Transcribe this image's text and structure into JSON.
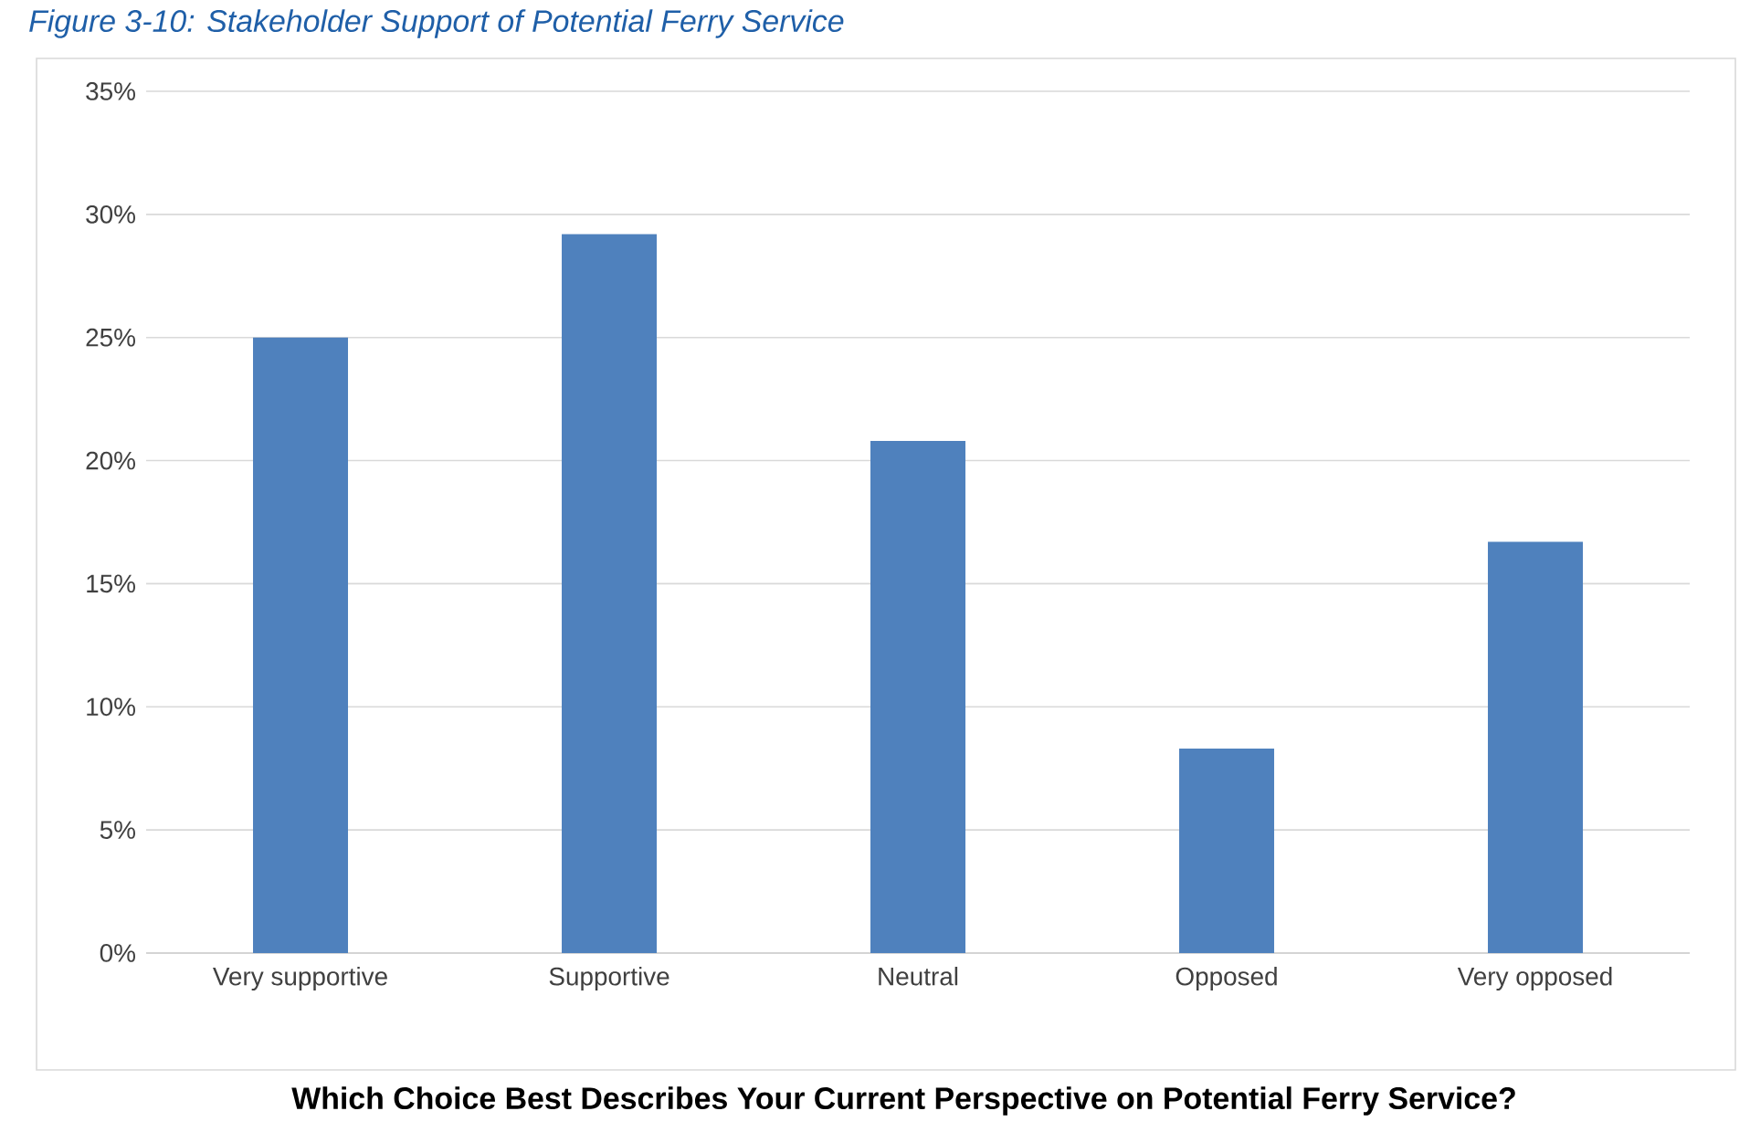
{
  "chart_data": {
    "type": "bar",
    "title": "Figure 3-10: Stakeholder Support of Potential Ferry Service",
    "xlabel": "Which Choice Best Describes Your Current Perspective on Potential Ferry Service?",
    "categories": [
      "Very supportive",
      "Supportive",
      "Neutral",
      "Opposed",
      "Very opposed"
    ],
    "values": [
      25.0,
      29.2,
      20.8,
      8.3,
      16.7
    ],
    "color": "#4f81bd",
    "ylim": [
      0,
      35
    ],
    "yticks": [
      {
        "value": 0,
        "label": "0%"
      },
      {
        "value": 5,
        "label": "5%"
      },
      {
        "value": 10,
        "label": "10%"
      },
      {
        "value": 15,
        "label": "15%"
      },
      {
        "value": 20,
        "label": "20%"
      },
      {
        "value": 25,
        "label": "25%"
      },
      {
        "value": 30,
        "label": "30%"
      },
      {
        "value": 35,
        "label": "35%"
      }
    ],
    "grid": "y"
  }
}
